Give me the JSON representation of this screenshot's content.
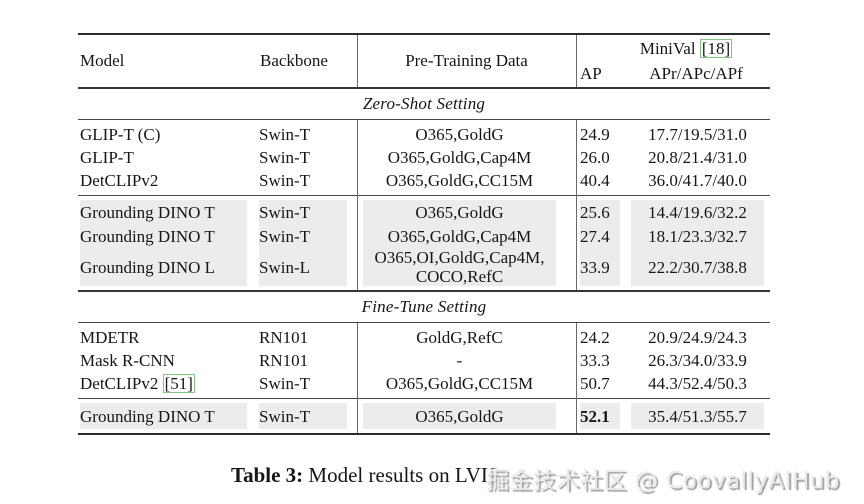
{
  "header": {
    "model": "Model",
    "backbone": "Backbone",
    "pretrain": "Pre-Training Data",
    "group_title": "MiniVal",
    "group_cite": "[18]",
    "ap": "AP",
    "apr": "APr/APc/APf"
  },
  "sections": [
    {
      "title": "Zero-Shot Setting",
      "groups": [
        {
          "highlight": false,
          "rows": [
            {
              "model": "GLIP-T (C)",
              "backbone": "Swin-T",
              "pretrain": [
                "O365,GoldG"
              ],
              "ap": "24.9",
              "apr": "17.7/19.5/31.0"
            },
            {
              "model": "GLIP-T",
              "backbone": "Swin-T",
              "pretrain": [
                "O365,GoldG,Cap4M"
              ],
              "ap": "26.0",
              "apr": "20.8/21.4/31.0"
            },
            {
              "model": "DetCLIPv2",
              "backbone": "Swin-T",
              "pretrain": [
                "O365,GoldG,CC15M"
              ],
              "ap": "40.4",
              "apr": "36.0/41.7/40.0"
            }
          ]
        },
        {
          "highlight": true,
          "rows": [
            {
              "model": "Grounding DINO T",
              "backbone": "Swin-T",
              "pretrain": [
                "O365,GoldG"
              ],
              "ap": "25.6",
              "apr": "14.4/19.6/32.2"
            },
            {
              "model": "Grounding DINO T",
              "backbone": "Swin-T",
              "pretrain": [
                "O365,GoldG,Cap4M"
              ],
              "ap": "27.4",
              "apr": "18.1/23.3/32.7"
            },
            {
              "model": "Grounding DINO L",
              "backbone": "Swin-L",
              "pretrain": [
                "O365,OI,GoldG,Cap4M,",
                "COCO,RefC"
              ],
              "ap": "33.9",
              "apr": "22.2/30.7/38.8"
            }
          ]
        }
      ]
    },
    {
      "title": "Fine-Tune Setting",
      "groups": [
        {
          "highlight": false,
          "rows": [
            {
              "model": "MDETR",
              "backbone": "RN101",
              "pretrain": [
                "GoldG,RefC"
              ],
              "ap": "24.2",
              "apr": "20.9/24.9/24.3"
            },
            {
              "model": "Mask R-CNN",
              "backbone": "RN101",
              "pretrain": [
                "-"
              ],
              "ap": "33.3",
              "apr": "26.3/34.0/33.9"
            },
            {
              "model": "DetCLIPv2",
              "model_cite": "[51]",
              "backbone": "Swin-T",
              "pretrain": [
                "O365,GoldG,CC15M"
              ],
              "ap": "50.7",
              "apr": "44.3/52.4/50.3"
            }
          ]
        },
        {
          "highlight": true,
          "rows": [
            {
              "model": "Grounding DINO T",
              "backbone": "Swin-T",
              "pretrain": [
                "O365,GoldG"
              ],
              "ap": "52.1",
              "ap_bold": true,
              "apr": "35.4/51.3/55.7"
            }
          ]
        }
      ]
    }
  ],
  "caption": {
    "label": "Table 3:",
    "text": " Model results on LVIS."
  },
  "watermark": "掘金技术社区 @ CoovallyAIHub",
  "colors": {
    "highlight": "#ececec",
    "cite_green": "#85c585"
  }
}
